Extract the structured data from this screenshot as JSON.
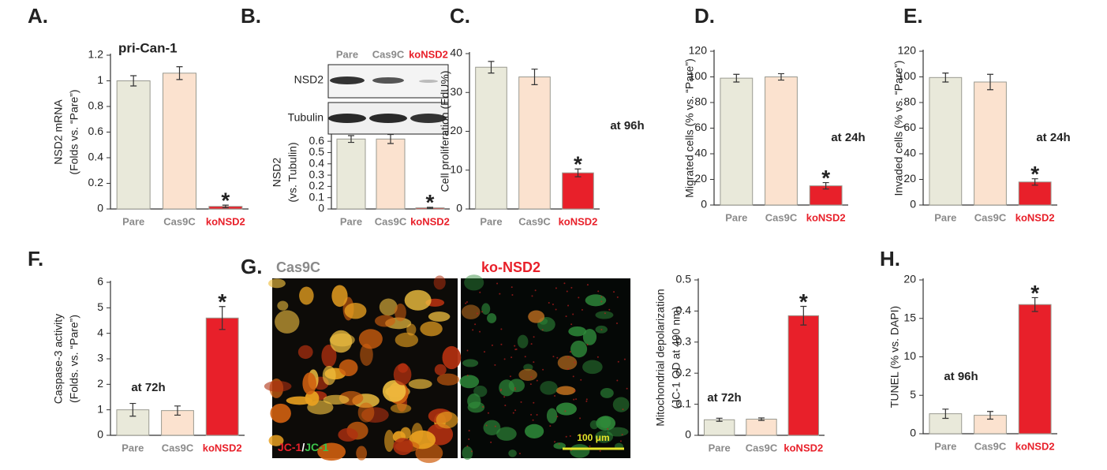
{
  "blot": {
    "panel": "B.",
    "lanes": [
      "Pare",
      "Cas9C",
      "koNSD2"
    ],
    "rows": [
      "NSD2",
      "Tubulin"
    ]
  },
  "micrograph": {
    "panel": "G.",
    "left_title": "Cas9C",
    "right_title": "ko-NSD2",
    "stain": [
      "JC-1",
      "/",
      "JC-1"
    ],
    "scale_bar": "100 μm"
  },
  "chart_data": [
    {
      "type": "bar",
      "panel": "A.",
      "title": "pri-Can-1",
      "ylabel": [
        "NSD2 mRNA",
        "(Folds vs. “Pare”)"
      ],
      "categories": [
        "Pare",
        "Cas9C",
        "koNSD2"
      ],
      "values": [
        1.0,
        1.06,
        0.02
      ],
      "errors": [
        0.04,
        0.05,
        0.01
      ],
      "colors": [
        "#e9e9da",
        "#fbe2cf",
        "#e8202a"
      ],
      "label_colors": [
        "#8a8a8a",
        "#8a8a8a",
        "#e8202a"
      ],
      "ylim": [
        0,
        1.2
      ],
      "yticks": [
        0,
        0.2,
        0.4,
        0.6,
        0.8,
        1,
        1.2
      ],
      "significance": "*"
    },
    {
      "type": "bar",
      "ylabel": [
        "NSD2",
        "(vs. Tubulin)"
      ],
      "categories": [
        "Pare",
        "Cas9C",
        "koNSD2"
      ],
      "values": [
        0.62,
        0.62,
        0.01
      ],
      "errors": [
        0.03,
        0.04,
        0.005
      ],
      "colors": [
        "#e9e9da",
        "#fbe2cf",
        "#e8202a"
      ],
      "label_colors": [
        "#8a8a8a",
        "#8a8a8a",
        "#e8202a"
      ],
      "ylim": [
        0,
        0.65
      ],
      "yticks": [
        0,
        0.1,
        0.2,
        0.3,
        0.4,
        0.5,
        0.6
      ],
      "significance": "*"
    },
    {
      "type": "bar",
      "panel": "C.",
      "ylabel": [
        "Cell proliferation (EdU%)"
      ],
      "categories": [
        "Pare",
        "Cas9C",
        "koNSD2"
      ],
      "values": [
        36.5,
        34,
        9.3
      ],
      "errors": [
        1.5,
        2,
        1
      ],
      "colors": [
        "#e9e9da",
        "#fbe2cf",
        "#e8202a"
      ],
      "label_colors": [
        "#8a8a8a",
        "#8a8a8a",
        "#e8202a"
      ],
      "ylim": [
        0,
        40
      ],
      "yticks": [
        0,
        10,
        20,
        30,
        40
      ],
      "annotation": "at 96h",
      "significance": "*"
    },
    {
      "type": "bar",
      "panel": "D.",
      "ylabel": [
        "Migrated cells (% vs. “Pare”)"
      ],
      "categories": [
        "Pare",
        "Cas9C",
        "koNSD2"
      ],
      "values": [
        99,
        100,
        15
      ],
      "errors": [
        3,
        2.5,
        2.5
      ],
      "colors": [
        "#e9e9da",
        "#fbe2cf",
        "#e8202a"
      ],
      "label_colors": [
        "#8a8a8a",
        "#8a8a8a",
        "#e8202a"
      ],
      "ylim": [
        0,
        120
      ],
      "yticks": [
        0,
        20,
        40,
        60,
        80,
        100,
        120
      ],
      "annotation": "at 24h",
      "significance": "*"
    },
    {
      "type": "bar",
      "panel": "E.",
      "ylabel": [
        "Invaded cells (% vs. “Pare”)"
      ],
      "categories": [
        "Pare",
        "Cas9C",
        "koNSD2"
      ],
      "values": [
        99.5,
        96,
        18
      ],
      "errors": [
        3.5,
        6,
        2.5
      ],
      "colors": [
        "#e9e9da",
        "#fbe2cf",
        "#e8202a"
      ],
      "label_colors": [
        "#8a8a8a",
        "#8a8a8a",
        "#e8202a"
      ],
      "ylim": [
        0,
        120
      ],
      "yticks": [
        0,
        20,
        40,
        60,
        80,
        100,
        120
      ],
      "annotation": "at 24h",
      "significance": "*"
    },
    {
      "type": "bar",
      "panel": "F.",
      "ylabel": [
        "Caspase-3 activity",
        "(Folds. vs. “Pare”)"
      ],
      "categories": [
        "Pare",
        "Cas9C",
        "koNSD2"
      ],
      "values": [
        1.0,
        0.97,
        4.6
      ],
      "errors": [
        0.25,
        0.18,
        0.45
      ],
      "colors": [
        "#e9e9da",
        "#fbe2cf",
        "#e8202a"
      ],
      "label_colors": [
        "#8a8a8a",
        "#8a8a8a",
        "#e8202a"
      ],
      "ylim": [
        0,
        6
      ],
      "yticks": [
        0,
        1,
        2,
        3,
        4,
        5,
        6
      ],
      "annotation": "at 72h",
      "significance": "*"
    },
    {
      "type": "bar",
      "ylabel": [
        "Mitochondrial depolarization",
        "(JC-1 OD at 490 nm)"
      ],
      "categories": [
        "Pare",
        "Cas9C",
        "koNSD2"
      ],
      "values": [
        0.05,
        0.052,
        0.385
      ],
      "errors": [
        0.005,
        0.004,
        0.03
      ],
      "colors": [
        "#e9e9da",
        "#fbe2cf",
        "#e8202a"
      ],
      "label_colors": [
        "#8a8a8a",
        "#8a8a8a",
        "#e8202a"
      ],
      "ylim": [
        0,
        0.5
      ],
      "yticks": [
        0,
        0.1,
        0.2,
        0.3,
        0.4,
        0.5
      ],
      "annotation": "at 72h",
      "significance": "*"
    },
    {
      "type": "bar",
      "panel": "H.",
      "ylabel": [
        "TUNEL (% vs. DAPI)"
      ],
      "categories": [
        "Pare",
        "Cas9C",
        "koNSD2"
      ],
      "values": [
        2.6,
        2.4,
        16.8
      ],
      "errors": [
        0.6,
        0.5,
        0.9
      ],
      "colors": [
        "#e9e9da",
        "#fbe2cf",
        "#e8202a"
      ],
      "label_colors": [
        "#8a8a8a",
        "#8a8a8a",
        "#e8202a"
      ],
      "ylim": [
        0,
        20
      ],
      "yticks": [
        0,
        5,
        10,
        15,
        20
      ],
      "annotation": "at 96h",
      "significance": "*"
    }
  ]
}
